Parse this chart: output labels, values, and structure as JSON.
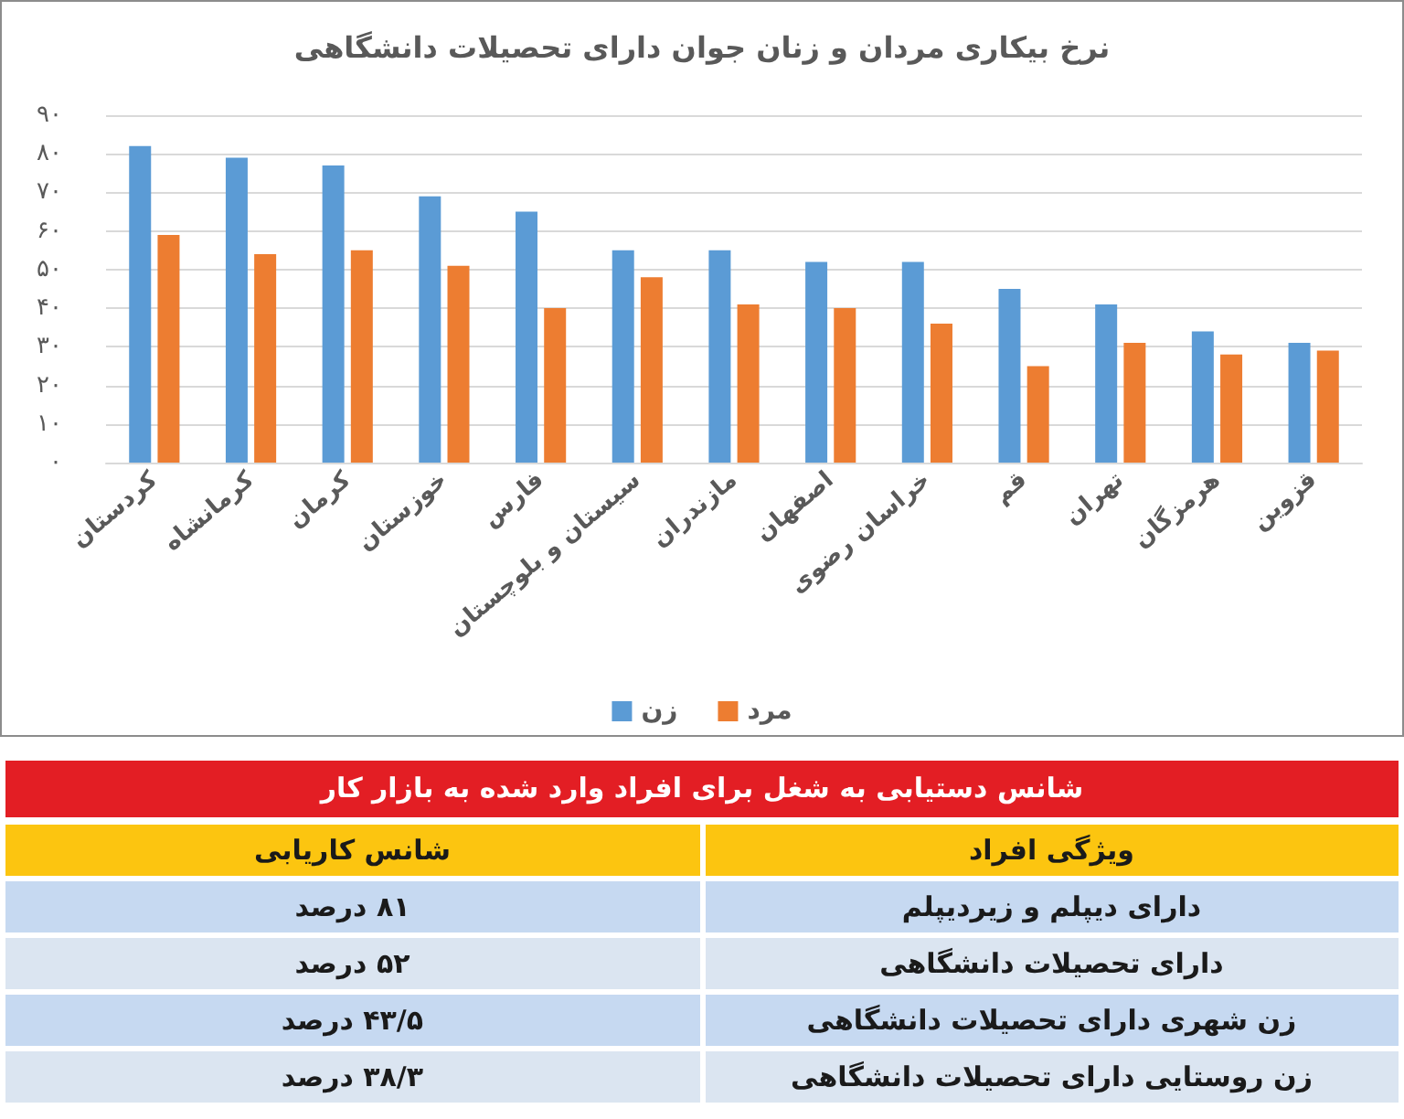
{
  "chart_data": [
    {
      "type": "bar",
      "title": "نرخ بیکاری مردان و زنان جوان دارای تحصیلات دانشگاهی",
      "categories": [
        "کردستان",
        "کرمانشاه",
        "کرمان",
        "خوزستان",
        "فارس",
        "سیستان و بلوچستان",
        "مازندران",
        "اصفهان",
        "خراسان رضوی",
        "قم",
        "تهران",
        "هرمزگان",
        "قزوین"
      ],
      "series": [
        {
          "name": "زن",
          "color": "#5b9bd5",
          "values": [
            82,
            79,
            77,
            69,
            65,
            55,
            55,
            52,
            52,
            45,
            41,
            34,
            31
          ]
        },
        {
          "name": "مرد",
          "color": "#ed7d31",
          "values": [
            59,
            54,
            55,
            51,
            40,
            48,
            41,
            40,
            36,
            25,
            31,
            28,
            29
          ]
        }
      ],
      "ylim": [
        0,
        90
      ],
      "yticks": [
        {
          "value": 0,
          "label": "۰"
        },
        {
          "value": 10,
          "label": "۱۰"
        },
        {
          "value": 20,
          "label": "۲۰"
        },
        {
          "value": 30,
          "label": "۳۰"
        },
        {
          "value": 40,
          "label": "۴۰"
        },
        {
          "value": 50,
          "label": "۵۰"
        },
        {
          "value": 60,
          "label": "۶۰"
        },
        {
          "value": 70,
          "label": "۷۰"
        },
        {
          "value": 80,
          "label": "۸۰"
        },
        {
          "value": 90,
          "label": "۹۰"
        }
      ],
      "grid": "y",
      "legend": "bottom"
    },
    {
      "type": "other",
      "title": "شانس دستیابی به شغل برای افراد وارد شده به بازار کار",
      "annotations": [
        "ویژگی افراد",
        "شانس کاریابی",
        "دارای دیپلم و زیردیپلم",
        "۸۱ درصد",
        "دارای تحصیلات دانشگاهی",
        "۵۲ درصد",
        "زن شهری دارای تحصیلات دانشگاهی",
        "۴۳/۵ درصد",
        "زن روستایی دارای تحصیلات دانشگاهی",
        "۳۸/۳ درصد"
      ]
    }
  ]
}
